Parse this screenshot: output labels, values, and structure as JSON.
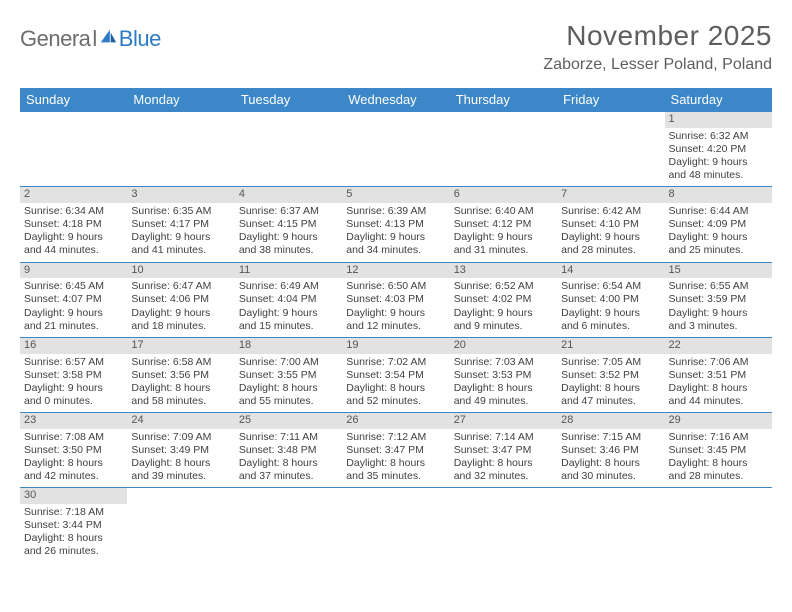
{
  "logo": {
    "text1": "Genera",
    "text2": "l",
    "text3": "Blue"
  },
  "title": "November 2025",
  "location": "Zaborze, Lesser Poland, Poland",
  "colors": {
    "header_bg": "#3b87c8",
    "header_text": "#ffffff",
    "daybar_bg": "#e2e2e2",
    "text": "#414141",
    "rule": "#3b87c8",
    "logo_gray": "#6d6d6d",
    "logo_blue": "#2d7bc4"
  },
  "day_names": [
    "Sunday",
    "Monday",
    "Tuesday",
    "Wednesday",
    "Thursday",
    "Friday",
    "Saturday"
  ],
  "weeks": [
    [
      {
        "n": "",
        "empty": true
      },
      {
        "n": "",
        "empty": true
      },
      {
        "n": "",
        "empty": true
      },
      {
        "n": "",
        "empty": true
      },
      {
        "n": "",
        "empty": true
      },
      {
        "n": "",
        "empty": true
      },
      {
        "n": "1",
        "sunrise": "Sunrise: 6:32 AM",
        "sunset": "Sunset: 4:20 PM",
        "day1": "Daylight: 9 hours",
        "day2": "and 48 minutes."
      }
    ],
    [
      {
        "n": "2",
        "sunrise": "Sunrise: 6:34 AM",
        "sunset": "Sunset: 4:18 PM",
        "day1": "Daylight: 9 hours",
        "day2": "and 44 minutes."
      },
      {
        "n": "3",
        "sunrise": "Sunrise: 6:35 AM",
        "sunset": "Sunset: 4:17 PM",
        "day1": "Daylight: 9 hours",
        "day2": "and 41 minutes."
      },
      {
        "n": "4",
        "sunrise": "Sunrise: 6:37 AM",
        "sunset": "Sunset: 4:15 PM",
        "day1": "Daylight: 9 hours",
        "day2": "and 38 minutes."
      },
      {
        "n": "5",
        "sunrise": "Sunrise: 6:39 AM",
        "sunset": "Sunset: 4:13 PM",
        "day1": "Daylight: 9 hours",
        "day2": "and 34 minutes."
      },
      {
        "n": "6",
        "sunrise": "Sunrise: 6:40 AM",
        "sunset": "Sunset: 4:12 PM",
        "day1": "Daylight: 9 hours",
        "day2": "and 31 minutes."
      },
      {
        "n": "7",
        "sunrise": "Sunrise: 6:42 AM",
        "sunset": "Sunset: 4:10 PM",
        "day1": "Daylight: 9 hours",
        "day2": "and 28 minutes."
      },
      {
        "n": "8",
        "sunrise": "Sunrise: 6:44 AM",
        "sunset": "Sunset: 4:09 PM",
        "day1": "Daylight: 9 hours",
        "day2": "and 25 minutes."
      }
    ],
    [
      {
        "n": "9",
        "sunrise": "Sunrise: 6:45 AM",
        "sunset": "Sunset: 4:07 PM",
        "day1": "Daylight: 9 hours",
        "day2": "and 21 minutes."
      },
      {
        "n": "10",
        "sunrise": "Sunrise: 6:47 AM",
        "sunset": "Sunset: 4:06 PM",
        "day1": "Daylight: 9 hours",
        "day2": "and 18 minutes."
      },
      {
        "n": "11",
        "sunrise": "Sunrise: 6:49 AM",
        "sunset": "Sunset: 4:04 PM",
        "day1": "Daylight: 9 hours",
        "day2": "and 15 minutes."
      },
      {
        "n": "12",
        "sunrise": "Sunrise: 6:50 AM",
        "sunset": "Sunset: 4:03 PM",
        "day1": "Daylight: 9 hours",
        "day2": "and 12 minutes."
      },
      {
        "n": "13",
        "sunrise": "Sunrise: 6:52 AM",
        "sunset": "Sunset: 4:02 PM",
        "day1": "Daylight: 9 hours",
        "day2": "and 9 minutes."
      },
      {
        "n": "14",
        "sunrise": "Sunrise: 6:54 AM",
        "sunset": "Sunset: 4:00 PM",
        "day1": "Daylight: 9 hours",
        "day2": "and 6 minutes."
      },
      {
        "n": "15",
        "sunrise": "Sunrise: 6:55 AM",
        "sunset": "Sunset: 3:59 PM",
        "day1": "Daylight: 9 hours",
        "day2": "and 3 minutes."
      }
    ],
    [
      {
        "n": "16",
        "sunrise": "Sunrise: 6:57 AM",
        "sunset": "Sunset: 3:58 PM",
        "day1": "Daylight: 9 hours",
        "day2": "and 0 minutes."
      },
      {
        "n": "17",
        "sunrise": "Sunrise: 6:58 AM",
        "sunset": "Sunset: 3:56 PM",
        "day1": "Daylight: 8 hours",
        "day2": "and 58 minutes."
      },
      {
        "n": "18",
        "sunrise": "Sunrise: 7:00 AM",
        "sunset": "Sunset: 3:55 PM",
        "day1": "Daylight: 8 hours",
        "day2": "and 55 minutes."
      },
      {
        "n": "19",
        "sunrise": "Sunrise: 7:02 AM",
        "sunset": "Sunset: 3:54 PM",
        "day1": "Daylight: 8 hours",
        "day2": "and 52 minutes."
      },
      {
        "n": "20",
        "sunrise": "Sunrise: 7:03 AM",
        "sunset": "Sunset: 3:53 PM",
        "day1": "Daylight: 8 hours",
        "day2": "and 49 minutes."
      },
      {
        "n": "21",
        "sunrise": "Sunrise: 7:05 AM",
        "sunset": "Sunset: 3:52 PM",
        "day1": "Daylight: 8 hours",
        "day2": "and 47 minutes."
      },
      {
        "n": "22",
        "sunrise": "Sunrise: 7:06 AM",
        "sunset": "Sunset: 3:51 PM",
        "day1": "Daylight: 8 hours",
        "day2": "and 44 minutes."
      }
    ],
    [
      {
        "n": "23",
        "sunrise": "Sunrise: 7:08 AM",
        "sunset": "Sunset: 3:50 PM",
        "day1": "Daylight: 8 hours",
        "day2": "and 42 minutes."
      },
      {
        "n": "24",
        "sunrise": "Sunrise: 7:09 AM",
        "sunset": "Sunset: 3:49 PM",
        "day1": "Daylight: 8 hours",
        "day2": "and 39 minutes."
      },
      {
        "n": "25",
        "sunrise": "Sunrise: 7:11 AM",
        "sunset": "Sunset: 3:48 PM",
        "day1": "Daylight: 8 hours",
        "day2": "and 37 minutes."
      },
      {
        "n": "26",
        "sunrise": "Sunrise: 7:12 AM",
        "sunset": "Sunset: 3:47 PM",
        "day1": "Daylight: 8 hours",
        "day2": "and 35 minutes."
      },
      {
        "n": "27",
        "sunrise": "Sunrise: 7:14 AM",
        "sunset": "Sunset: 3:47 PM",
        "day1": "Daylight: 8 hours",
        "day2": "and 32 minutes."
      },
      {
        "n": "28",
        "sunrise": "Sunrise: 7:15 AM",
        "sunset": "Sunset: 3:46 PM",
        "day1": "Daylight: 8 hours",
        "day2": "and 30 minutes."
      },
      {
        "n": "29",
        "sunrise": "Sunrise: 7:16 AM",
        "sunset": "Sunset: 3:45 PM",
        "day1": "Daylight: 8 hours",
        "day2": "and 28 minutes."
      }
    ],
    [
      {
        "n": "30",
        "sunrise": "Sunrise: 7:18 AM",
        "sunset": "Sunset: 3:44 PM",
        "day1": "Daylight: 8 hours",
        "day2": "and 26 minutes."
      },
      {
        "n": "",
        "empty": true
      },
      {
        "n": "",
        "empty": true
      },
      {
        "n": "",
        "empty": true
      },
      {
        "n": "",
        "empty": true
      },
      {
        "n": "",
        "empty": true
      },
      {
        "n": "",
        "empty": true
      }
    ]
  ]
}
